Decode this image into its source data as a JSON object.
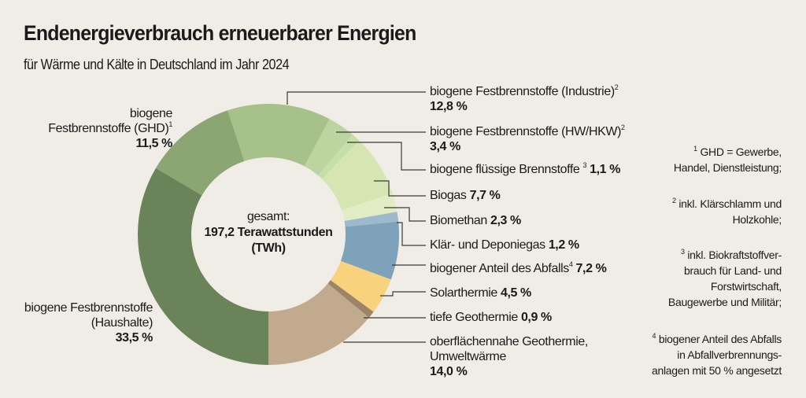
{
  "header": {
    "title": "Endenergieverbrauch erneuerbarer Energien",
    "subtitle": "für Wärme und Kälte in Deutschland im Jahr 2024"
  },
  "center": {
    "line1": "gesamt:",
    "line2": "197,2 Terawattstunden",
    "line3": "(TWh)"
  },
  "chart_data": {
    "type": "pie",
    "variant": "donut",
    "title": "Endenergieverbrauch erneuerbarer Energien",
    "subtitle": "für Wärme und Kälte in Deutschland im Jahr 2024",
    "total": "197,2 Terawattstunden (TWh)",
    "start": "bottom, clockwise",
    "slices": [
      {
        "label": "biogene Festbrennstoffe (Haushalte)",
        "value": 33.5,
        "value_label": "33,5 %",
        "color": "#6b8358"
      },
      {
        "label": "biogene Festbrennstoffe (GHD)",
        "value": 11.5,
        "value_label": "11,5 %",
        "color": "#8ba672",
        "footnote": "1"
      },
      {
        "label": "biogene Festbrennstoffe (Industrie)",
        "value": 12.8,
        "value_label": "12,8 %",
        "color": "#a6c189",
        "footnote": "2"
      },
      {
        "label": "biogene Festbrennstoffe (HW/HKW)",
        "value": 3.4,
        "value_label": "3,4 %",
        "color": "#bcd4a0",
        "footnote": "2"
      },
      {
        "label": "biogene flüssige Brennstoffe",
        "value": 1.1,
        "value_label": "1,1 %",
        "color": "#c6dea8",
        "footnote": "3"
      },
      {
        "label": "Biogas",
        "value": 7.7,
        "value_label": "7,7 %",
        "color": "#d6e6b2"
      },
      {
        "label": "Biomethan",
        "value": 2.3,
        "value_label": "2,3 %",
        "color": "#e2edc6"
      },
      {
        "label": "Klär- und Deponiegas",
        "value": 1.2,
        "value_label": "1,2 %",
        "color": "#9cbacb"
      },
      {
        "label": "biogener Anteil des Abfalls",
        "value": 7.2,
        "value_label": "7,2 %",
        "color": "#7ea2ba",
        "footnote": "4"
      },
      {
        "label": "Solarthermie",
        "value": 4.5,
        "value_label": "4,5 %",
        "color": "#f8d27d"
      },
      {
        "label": "tiefe Geothermie",
        "value": 0.9,
        "value_label": "0,9 %",
        "color": "#9d8469"
      },
      {
        "label": "oberflächennahe Geothermie, Umweltwärme",
        "value": 14.0,
        "value_label": "14,0 %",
        "color": "#c2aa8f"
      }
    ]
  },
  "labels": {
    "haushalte": {
      "line1": "biogene Festbrennstoffe",
      "line2": "(Haushalte)",
      "value": "33,5 %"
    },
    "ghd": {
      "line1": "biogene",
      "line2": "Festbrennstoffe (GHD)",
      "sup": "1",
      "value": "11,5 %"
    },
    "industrie": {
      "text": "biogene Festbrennstoffe (Industrie)",
      "sup": "2",
      "value": "12,8 %"
    },
    "hw": {
      "text": "biogene Festbrennstoffe (HW/HKW)",
      "sup": "2",
      "value": "3,4 %"
    },
    "fluessig": {
      "text": "biogene flüssige Brennstoffe ",
      "sup": "3",
      "value": "1,1 %"
    },
    "biogas": {
      "text": "Biogas ",
      "value": "7,7 %"
    },
    "biomethan": {
      "text": "Biomethan ",
      "value": "2,3 %"
    },
    "klaer": {
      "text": "Klär- und Deponiegas ",
      "value": "1,2 %"
    },
    "abfall": {
      "text": "biogener Anteil des Abfalls",
      "sup": "4",
      "value": "7,2 %"
    },
    "solar": {
      "text": "Solarthermie ",
      "value": "4,5 %"
    },
    "tiefe": {
      "text": "tiefe Geothermie ",
      "value": "0,9 %"
    },
    "oberfl": {
      "line1": "oberflächennahe Geothermie,",
      "line2": "Umweltwärme",
      "value": "14,0 %"
    }
  },
  "footnotes": [
    {
      "sup": "1",
      "line1": "GHD = Gewerbe,",
      "line2": "Handel, Dienstleistung;"
    },
    {
      "sup": "2",
      "line1": "inkl. Klärschlamm und",
      "line2": "Holzkohle;"
    },
    {
      "sup": "3",
      "line1": "inkl. Biokraftstoffver-",
      "line2": "brauch für Land- und",
      "line3": "Forstwirtschaft,",
      "line4": "Baugewerbe und Militär;"
    },
    {
      "sup": "4",
      "line1": "biogener Anteil des Abfalls",
      "line2": "in Abfallverbrennungs-",
      "line3": "anlagen mit 50 % angesetzt"
    }
  ]
}
